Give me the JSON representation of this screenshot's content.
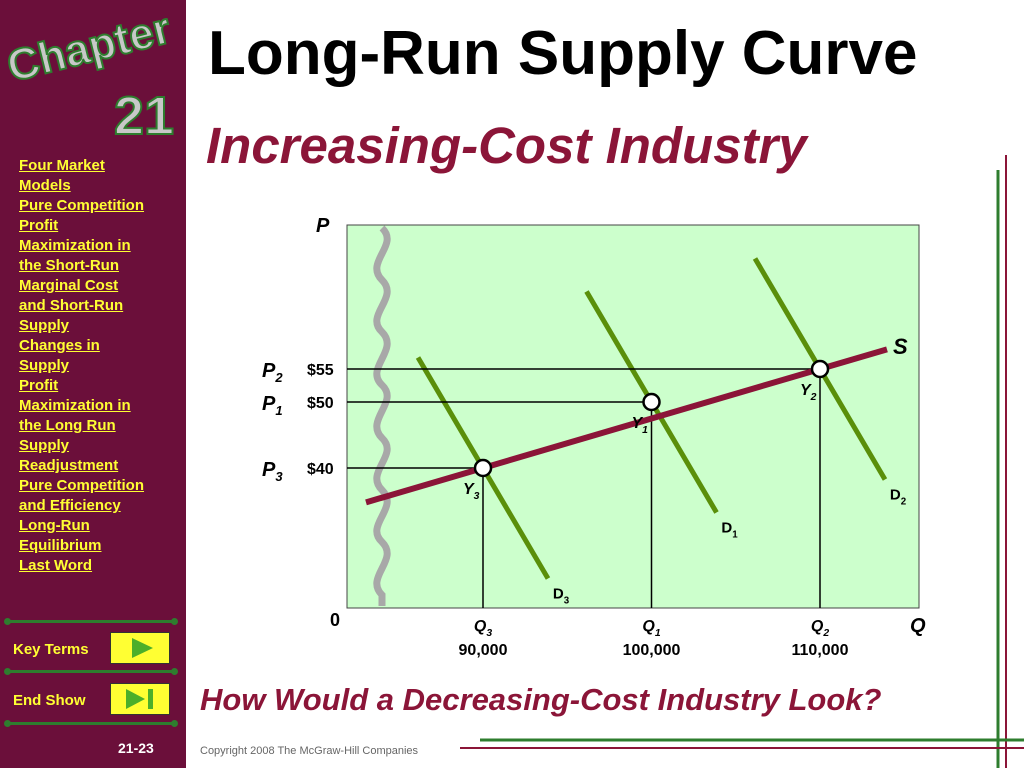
{
  "slide": {
    "chapter_word": "Chapter",
    "chapter_number": "21",
    "title": "Long-Run Supply Curve",
    "subtitle": "Increasing-Cost Industry",
    "question": "How Would a Decreasing-Cost Industry Look?",
    "copyright": "Copyright 2008 The McGraw-Hill Companies",
    "slide_number": "21-23"
  },
  "sidebar": {
    "links": [
      "Four Market",
      "Models",
      "Pure Competition",
      "Profit",
      "Maximization in",
      "the Short-Run",
      "Marginal Cost",
      "and Short-Run",
      "Supply",
      "Changes in",
      "Supply",
      "Profit",
      "Maximization in",
      "the Long Run",
      "Supply",
      "Readjustment",
      "Pure Competition",
      "and Efficiency",
      "Long-Run",
      "Equilibrium",
      "Last Word"
    ],
    "key_terms_label": "Key Terms",
    "end_show_label": "End Show"
  },
  "colors": {
    "sidebar_bg": "#6b0f3a",
    "link_text": "#ffff33",
    "plot_bg": "#ccffcc",
    "supply_line": "#8b1538",
    "demand_lines": "#5a8f0a",
    "accent_text": "#8b1538"
  },
  "chart_data": {
    "type": "line",
    "xlabel": "Q",
    "ylabel": "P",
    "origin_label": "0",
    "supply_label": "S",
    "equilibria": [
      {
        "point": "Y",
        "sub": "3",
        "price_label": "P",
        "price_sub": "3",
        "price": 40,
        "price_text": "$40",
        "q_label": "Q",
        "q_sub": "3",
        "quantity": 90000,
        "quantity_text": "90,000",
        "demand": "D",
        "demand_sub": "3"
      },
      {
        "point": "Y",
        "sub": "1",
        "price_label": "P",
        "price_sub": "1",
        "price": 50,
        "price_text": "$50",
        "q_label": "Q",
        "q_sub": "1",
        "quantity": 100000,
        "quantity_text": "100,000",
        "demand": "D",
        "demand_sub": "1"
      },
      {
        "point": "Y",
        "sub": "2",
        "price_label": "P",
        "price_sub": "2",
        "price": 55,
        "price_text": "$55",
        "q_label": "Q",
        "q_sub": "2",
        "quantity": 110000,
        "quantity_text": "110,000",
        "demand": "D",
        "demand_sub": "2"
      }
    ]
  }
}
